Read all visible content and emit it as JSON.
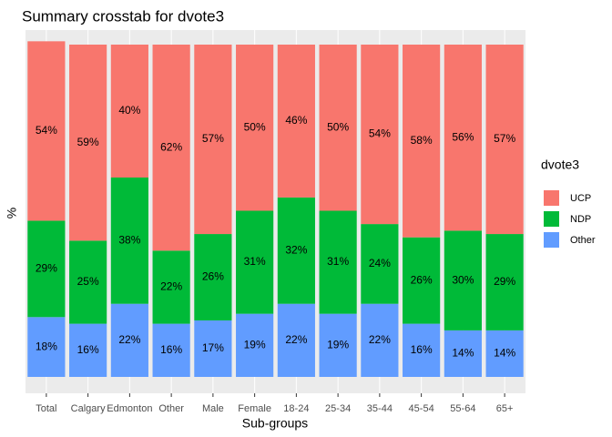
{
  "chart_data": {
    "type": "bar",
    "stacked": true,
    "title": "Summary crosstab for dvote3",
    "x_label": "Sub-groups",
    "y_label": "%",
    "legend_title": "dvote3",
    "legend_position": "right",
    "categories": [
      "Total",
      "Calgary",
      "Edmonton",
      "Other",
      "Male",
      "Female",
      "18-24",
      "25-34",
      "35-44",
      "45-54",
      "55-64",
      "65+"
    ],
    "series": [
      {
        "name": "UCP",
        "color": "#F8766D",
        "values": [
          54,
          59,
          40,
          62,
          57,
          50,
          46,
          50,
          54,
          58,
          56,
          57
        ],
        "value_labels": [
          "54%",
          "59%",
          "40%",
          "62%",
          "57%",
          "50%",
          "46%",
          "50%",
          "54%",
          "58%",
          "56%",
          "57%"
        ]
      },
      {
        "name": "NDP",
        "color": "#00BA38",
        "values": [
          29,
          25,
          38,
          22,
          26,
          31,
          32,
          31,
          24,
          26,
          30,
          29
        ],
        "value_labels": [
          "29%",
          "25%",
          "38%",
          "22%",
          "26%",
          "31%",
          "32%",
          "31%",
          "24%",
          "26%",
          "30%",
          "29%"
        ]
      },
      {
        "name": "Other",
        "color": "#619CFF",
        "values": [
          18,
          16,
          22,
          16,
          17,
          19,
          22,
          19,
          22,
          16,
          14,
          14
        ],
        "value_labels": [
          "18%",
          "16%",
          "22%",
          "16%",
          "17%",
          "19%",
          "22%",
          "19%",
          "22%",
          "16%",
          "14%",
          "14%"
        ]
      }
    ],
    "ylim": [
      0,
      100
    ],
    "grid": true
  }
}
